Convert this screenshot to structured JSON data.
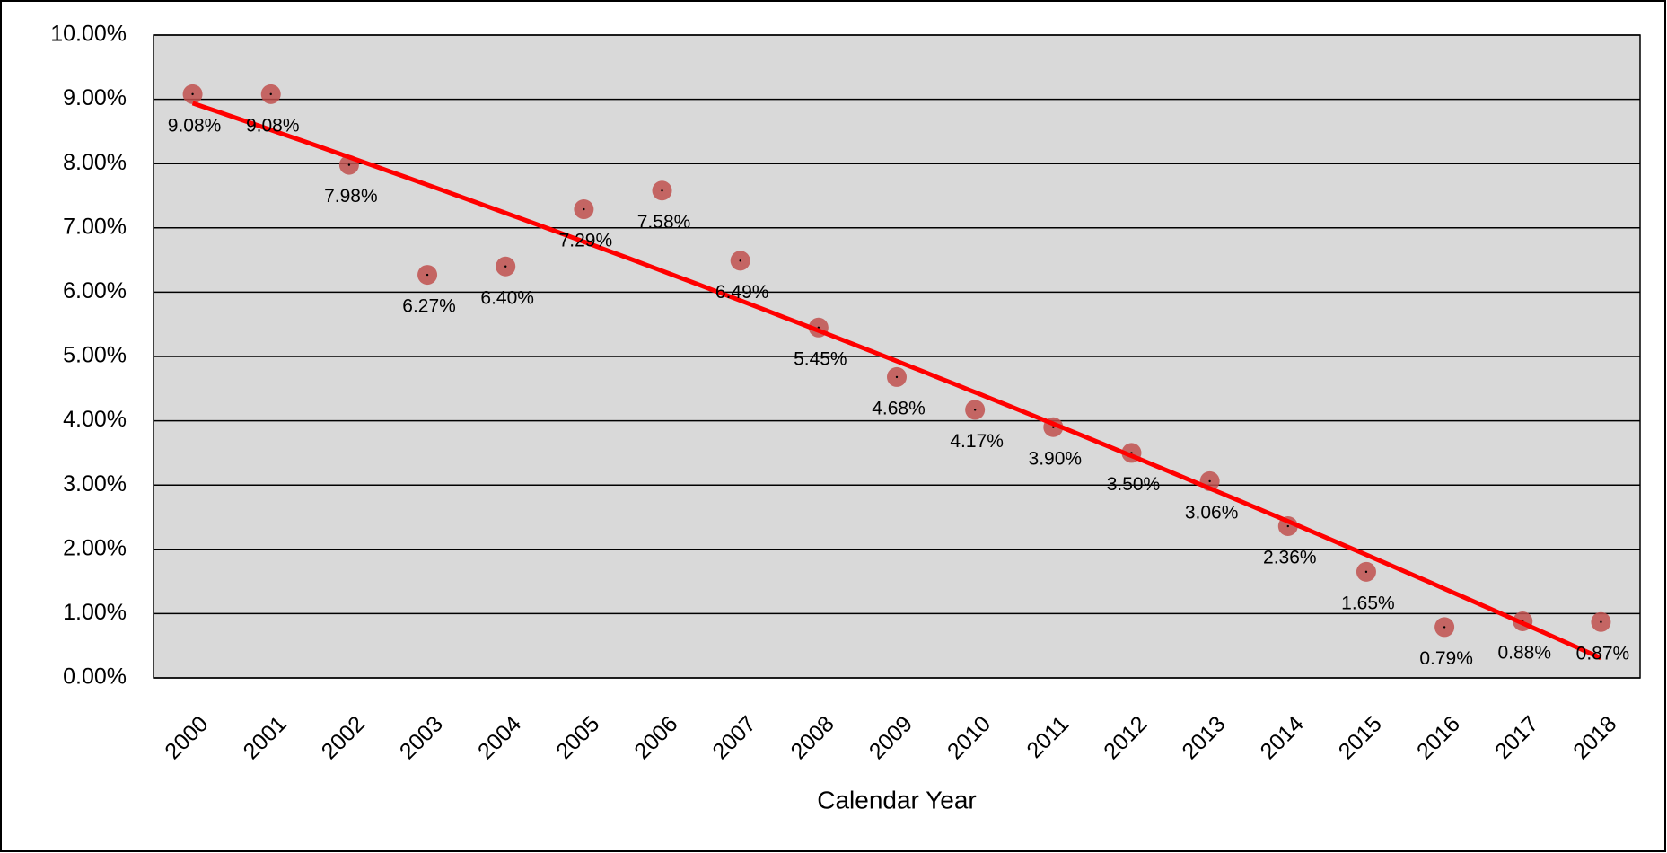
{
  "chart_data": {
    "type": "scatter",
    "x_label": "Calendar Year",
    "categories": [
      "2000",
      "2001",
      "2002",
      "2003",
      "2004",
      "2005",
      "2006",
      "2007",
      "2008",
      "2009",
      "2010",
      "2011",
      "2012",
      "2013",
      "2014",
      "2015",
      "2016",
      "2017",
      "2018"
    ],
    "values": [
      9.08,
      9.08,
      7.98,
      6.27,
      6.4,
      7.29,
      7.58,
      6.49,
      5.45,
      4.68,
      4.17,
      3.9,
      3.5,
      3.06,
      2.36,
      1.65,
      0.79,
      0.88,
      0.87
    ],
    "value_labels": [
      "9.08%",
      "9.08%",
      "7.98%",
      "6.27%",
      "6.40%",
      "7.29%",
      "7.58%",
      "6.49%",
      "5.45%",
      "4.68%",
      "4.17%",
      "3.90%",
      "3.50%",
      "3.06%",
      "2.36%",
      "1.65%",
      "0.79%",
      "0.88%",
      "0.87%"
    ],
    "color": "#c0504d",
    "ylim": [
      0,
      10
    ],
    "yticks": [
      {
        "value": 0,
        "label": "0.00%"
      },
      {
        "value": 1,
        "label": "1.00%"
      },
      {
        "value": 2,
        "label": "2.00%"
      },
      {
        "value": 3,
        "label": "3.00%"
      },
      {
        "value": 4,
        "label": "4.00%"
      },
      {
        "value": 5,
        "label": "5.00%"
      },
      {
        "value": 6,
        "label": "6.00%"
      },
      {
        "value": 7,
        "label": "7.00%"
      },
      {
        "value": 8,
        "label": "8.00%"
      },
      {
        "value": 9,
        "label": "9.00%"
      },
      {
        "value": 10,
        "label": "10.00%"
      }
    ],
    "grid": true,
    "trendline": "polynomial",
    "trendline_color": "#ff0000"
  }
}
